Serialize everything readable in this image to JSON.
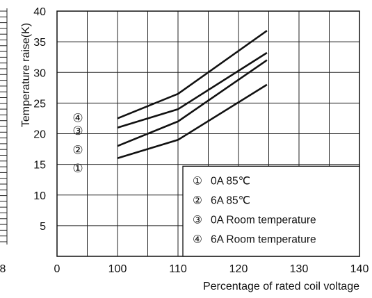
{
  "chart_data": {
    "type": "line",
    "xlabel": "Percentage of rated coil voltage",
    "ylabel": "Temperature raise(K)",
    "xlim": [
      90,
      140
    ],
    "ylim": [
      0,
      40
    ],
    "x_ticks": [
      "0",
      "100",
      "110",
      "120",
      "130",
      "140"
    ],
    "y_ticks": [
      "5",
      "10",
      "15",
      "20",
      "25",
      "30",
      "35",
      "40"
    ],
    "grid": true,
    "legend_position": "bottom-right",
    "series": [
      {
        "marker": "①",
        "name": "0A  85℃",
        "x": [
          100,
          110,
          124.7
        ],
        "y": [
          16.0,
          19.0,
          28.0
        ]
      },
      {
        "marker": "②",
        "name": "6A  85℃",
        "x": [
          100,
          110,
          124.7
        ],
        "y": [
          18.0,
          22.0,
          32.0
        ]
      },
      {
        "marker": "③",
        "name": "0A  Room temperature",
        "x": [
          100,
          110,
          124.7
        ],
        "y": [
          21.0,
          24.0,
          33.2
        ]
      },
      {
        "marker": "④",
        "name": "6A  Room temperature",
        "x": [
          100,
          110,
          124.7
        ],
        "y": [
          22.5,
          26.5,
          36.8
        ]
      }
    ],
    "left_edge_fragment": "8"
  }
}
